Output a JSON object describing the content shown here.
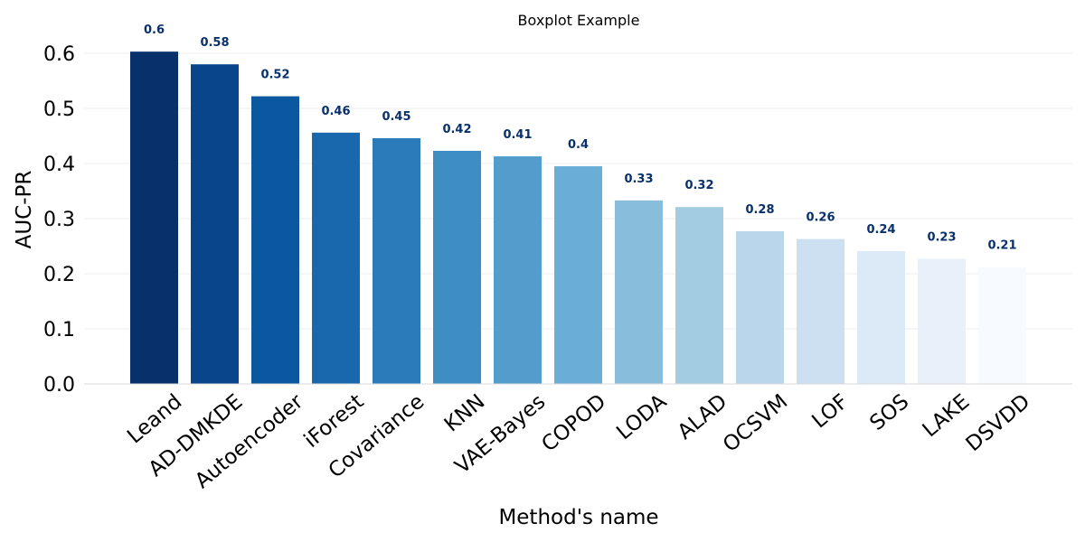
{
  "chart_data": {
    "type": "bar",
    "title": "Boxplot Example",
    "xlabel": "Method's name",
    "ylabel": "AUC-PR",
    "ylim": [
      0,
      0.65
    ],
    "yticks": [
      "0.0",
      "0.1",
      "0.2",
      "0.3",
      "0.4",
      "0.5",
      "0.6"
    ],
    "grid": true,
    "categories": [
      "Leand",
      "AD-DMKDE",
      "Autoencoder",
      "iForest",
      "Covariance",
      "KNN",
      "VAE-Bayes",
      "COPOD",
      "LODA",
      "ALAD",
      "OCSVM",
      "LOF",
      "SOS",
      "LAKE",
      "DSVDD"
    ],
    "values": [
      0.603,
      0.58,
      0.522,
      0.456,
      0.446,
      0.423,
      0.413,
      0.395,
      0.333,
      0.321,
      0.277,
      0.263,
      0.241,
      0.227,
      0.212
    ],
    "data_labels": [
      "0.6",
      "0.58",
      "0.52",
      "0.46",
      "0.45",
      "0.42",
      "0.41",
      "0.4",
      "0.33",
      "0.32",
      "0.28",
      "0.26",
      "0.24",
      "0.23",
      "0.21"
    ],
    "colors": [
      "#08306b",
      "#08458a",
      "#0b57a0",
      "#1968ad",
      "#2b7bba",
      "#3e8ec4",
      "#529dcc",
      "#6aaed6",
      "#88bedc",
      "#a3cce3",
      "#bad6eb",
      "#cde0f1",
      "#dce9f6",
      "#e8f1fa",
      "#f7fbff"
    ],
    "label_color": "#08306b"
  }
}
